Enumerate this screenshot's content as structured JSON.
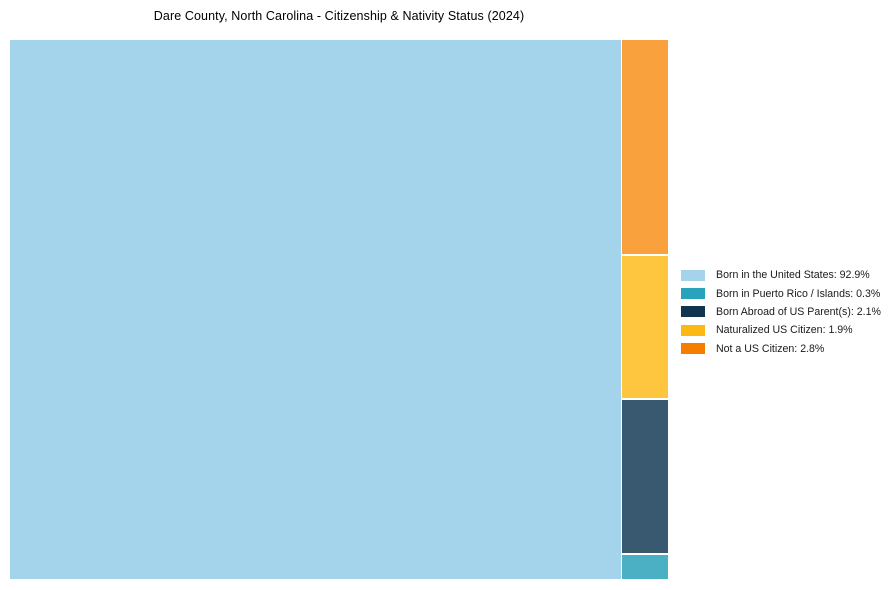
{
  "title": "Dare County, North Carolina - Citizenship & Nativity Status (2024)",
  "chart_data": {
    "type": "treemap",
    "title": "Dare County, North Carolina - Citizenship & Nativity Status (2024)",
    "unit": "percent",
    "total_pct": 100,
    "legend_position": "right",
    "items": [
      {
        "label": "Born in the United States",
        "value_pct": 92.9,
        "legend_label": "Born in the United States: 92.9%",
        "tile_color": "#a3d4eb",
        "legend_color": "#a6d3ec"
      },
      {
        "label": "Born in Puerto Rico / Islands",
        "value_pct": 0.3,
        "legend_label": "Born in Puerto Rico / Islands: 0.3%",
        "tile_color": "#4bb0c4",
        "legend_color": "#29a3bb"
      },
      {
        "label": "Born Abroad of US Parent(s)",
        "value_pct": 2.1,
        "legend_label": "Born Abroad of US Parent(s): 2.1%",
        "tile_color": "#38596f",
        "legend_color": "#11344f"
      },
      {
        "label": "Naturalized US Citizen",
        "value_pct": 1.9,
        "legend_label": "Naturalized US Citizen: 1.9%",
        "tile_color": "#fdc63e",
        "legend_color": "#fdb913"
      },
      {
        "label": "Not a US Citizen",
        "value_pct": 2.8,
        "legend_label": "Not a US Citizen: 2.8%",
        "tile_color": "#f9a13c",
        "legend_color": "#f57e00"
      }
    ]
  }
}
